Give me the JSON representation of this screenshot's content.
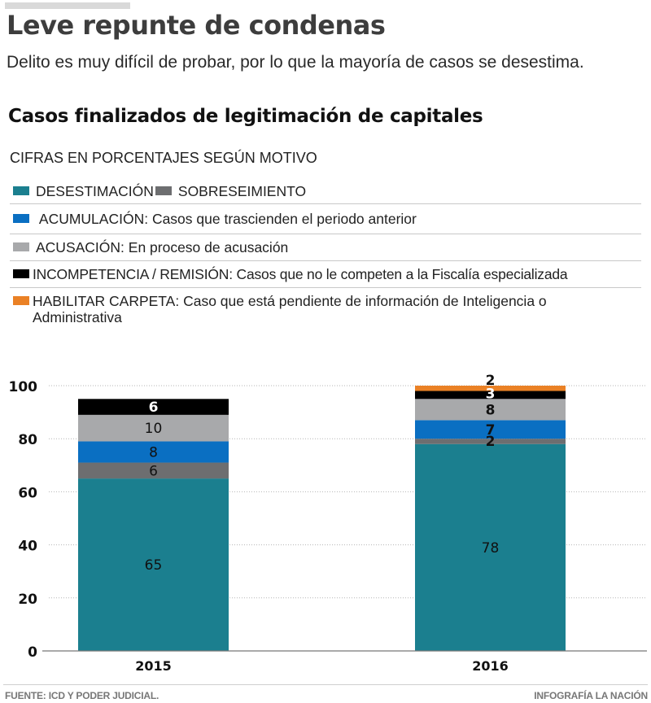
{
  "header": {
    "title": "Leve repunte de condenas",
    "subtitle": "Delito es muy difícil de probar, por lo que la mayoría de casos se desestima."
  },
  "chart_data": {
    "type": "bar",
    "stacked": true,
    "title": "Casos finalizados de legitimación de capitales",
    "subtitle": "CIFRAS EN PORCENTAJES SEGÚN MOTIVO",
    "categories": [
      "2015",
      "2016"
    ],
    "xlabel": "",
    "ylabel": "",
    "ylim": [
      0,
      100
    ],
    "yticks": [
      0,
      20,
      40,
      60,
      80,
      100
    ],
    "grid": true,
    "legend_position": "top",
    "series": [
      {
        "name": "DESESTIMACIÓN",
        "description": "",
        "color": "#1b7f8f",
        "values": [
          65,
          78
        ],
        "label_color": "#111111"
      },
      {
        "name": "SOBRESEIMIENTO",
        "description": "",
        "color": "#6d6e70",
        "values": [
          6,
          2
        ],
        "label_color": "#111111"
      },
      {
        "name": "ACUMULACIÓN",
        "description": "Casos que trascienden el periodo anterior",
        "color": "#0a6fc2",
        "values": [
          8,
          7
        ],
        "label_color": "#111111"
      },
      {
        "name": "ACUSACIÓN",
        "description": "En proceso de acusación",
        "color": "#a8a9ab",
        "values": [
          10,
          8
        ],
        "label_color": "#111111"
      },
      {
        "name": "INCOMPETENCIA / REMISIÓN",
        "description": "Casos que no le competen a la Fiscalía especializada",
        "color": "#000000",
        "values": [
          6,
          3
        ],
        "label_color": "#ffffff"
      },
      {
        "name": "HABILITAR CARPETA",
        "description": "Caso que está pendiente de información de Inteligencia o Administrativa",
        "color": "#ea8125",
        "values": [
          0,
          2
        ],
        "label_color": "#111111"
      }
    ]
  },
  "legend": {
    "rows": [
      [
        {
          "label": "DESESTIMACIÓN",
          "color": "#1b7f8f"
        },
        {
          "label": "SOBRESEIMIENTO",
          "color": "#6d6e70"
        }
      ],
      [
        {
          "label": " ACUMULACIÓN: Casos que trascienden el periodo anterior",
          "color": "#0a6fc2"
        }
      ],
      [
        {
          "label": "ACUSACIÓN: En proceso de acusación",
          "color": "#a8a9ab"
        }
      ],
      [
        {
          "label": "INCOMPETENCIA / REMISIÓN: Casos que no le competen a la Fiscalía especializada",
          "color": "#000000"
        }
      ],
      [
        {
          "label": "HABILITAR CARPETA: Caso que está pendiente de información de Inteligencia o Administrativa",
          "color": "#ea8125"
        }
      ]
    ]
  },
  "footer": {
    "source": "FUENTE: ICD Y PODER JUDICIAL.",
    "credit": "INFOGRAFÍA LA NACIÓN"
  }
}
